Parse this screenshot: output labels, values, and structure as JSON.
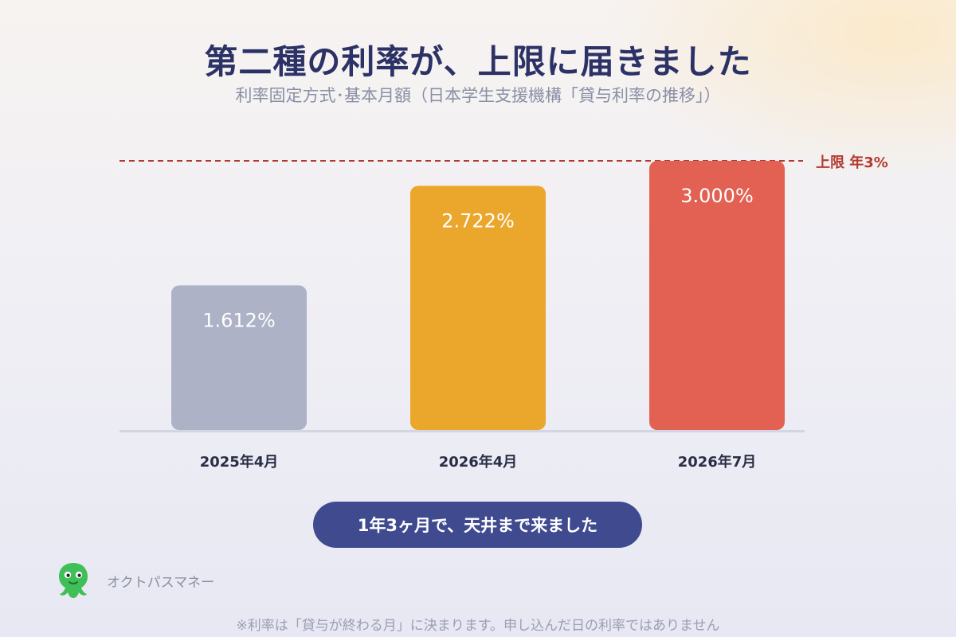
{
  "title": "第二種の利率が、上限に届きました",
  "subtitle": "利率固定方式･基本月額（日本学生支援機構「貸与利率の推移」）",
  "chart_data": {
    "type": "bar",
    "categories": [
      "2025年4月",
      "2026年4月",
      "2026年7月"
    ],
    "values": [
      1.612,
      2.722,
      3.0
    ],
    "value_labels": [
      "1.612%",
      "2.722%",
      "3.000%"
    ],
    "colors": [
      "#adb2c6",
      "#eba62c",
      "#e26152"
    ],
    "ylim": [
      0,
      3.0
    ],
    "grid": false,
    "reference_line": {
      "value": 3.0,
      "label": "上限 年3%",
      "color": "#b33a30",
      "style": "dashed"
    },
    "axis_color": "#d3d5e2",
    "label_color": "#2a2e45"
  },
  "callout": "1年3ヶ月で、天井まで来ました",
  "brand": {
    "name": "オクトパスマネー",
    "logo_icon": "octopus-icon",
    "logo_color": "#3fbf57"
  },
  "footnote": "※利率は「貸与が終わる月」に決まります。申し込んだ日の利率ではありません"
}
